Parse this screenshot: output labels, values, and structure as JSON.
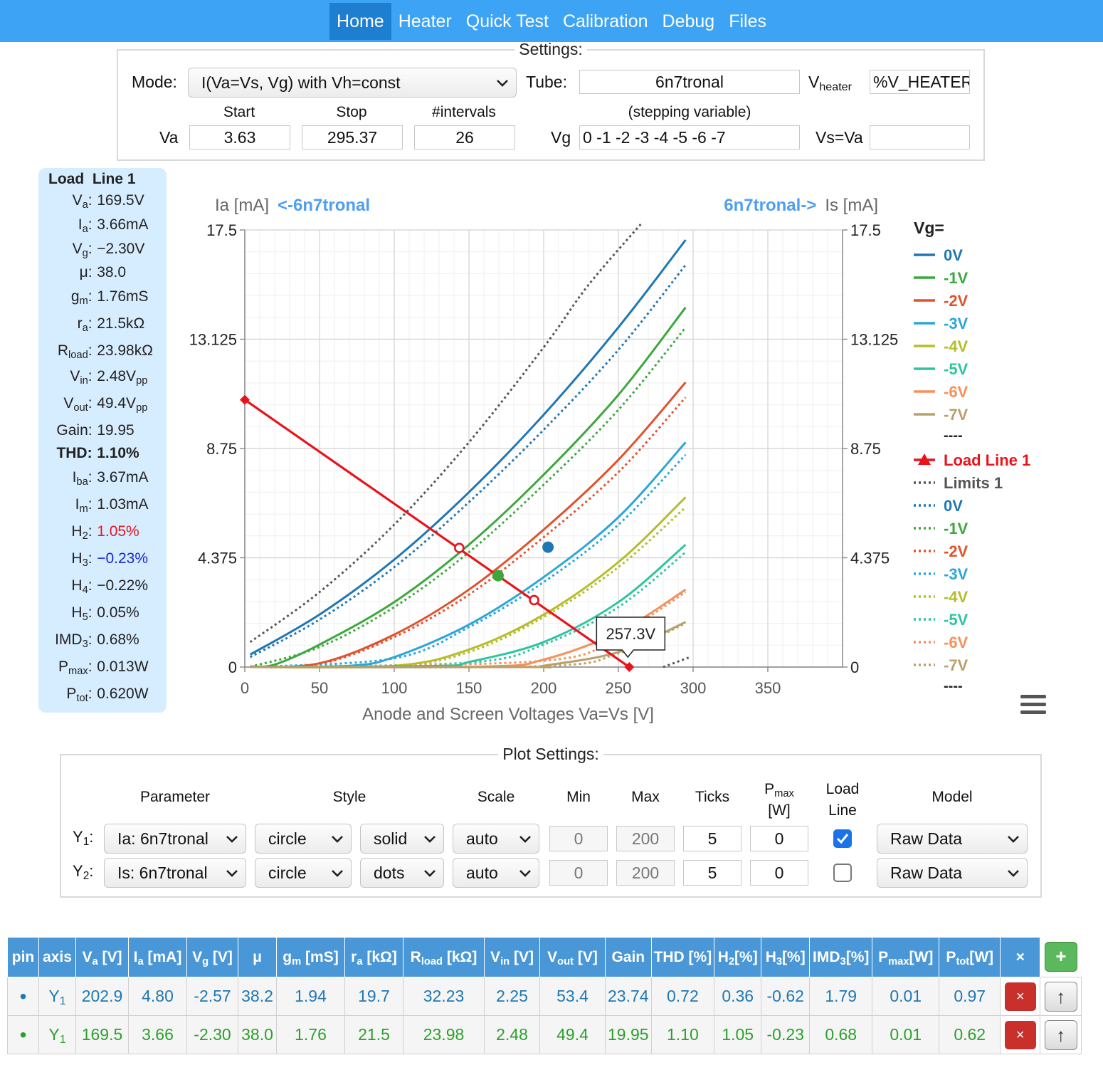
{
  "nav": {
    "tabs": [
      "Home",
      "Heater",
      "Quick Test",
      "Calibration",
      "Debug",
      "Files"
    ],
    "active": "Home"
  },
  "settings": {
    "legend": "Settings:",
    "mode_label": "Mode:",
    "mode_value": "I(Va=Vs, Vg) with Vh=const",
    "tube_label": "Tube:",
    "tube_value": "6n7tronal",
    "vheater_label_main": "V",
    "vheater_label_sub": "heater",
    "vheater_value": "%V_HEATER",
    "col_start": "Start",
    "col_stop": "Stop",
    "col_intervals": "#intervals",
    "col_stepping": "(stepping variable)",
    "va_label": "Va",
    "va_start": "3.63",
    "va_stop": "295.37",
    "va_intervals": "26",
    "vg_label": "Vg",
    "vg_value": "0 -1 -2 -3 -4 -5 -6 -7",
    "vs_label": "Vs=Va",
    "vs_value": ""
  },
  "load_line": {
    "title": "Load  Line 1",
    "rows": [
      {
        "k": "V",
        "sub": "a",
        "v": "169.5V"
      },
      {
        "k": "I",
        "sub": "a",
        "v": "3.66mA"
      },
      {
        "k": "V",
        "sub": "g",
        "v": "−2.30V"
      },
      {
        "k": "μ",
        "sub": "",
        "v": "38.0"
      },
      {
        "k": "g",
        "sub": "m",
        "v": "1.76mS"
      },
      {
        "k": "r",
        "sub": "a",
        "v": "21.5kΩ"
      },
      {
        "k": "R",
        "sub": "load",
        "v": "23.98kΩ"
      },
      {
        "k": "V",
        "sub": "in",
        "v": "2.48V",
        "vsub": "pp"
      },
      {
        "k": "V",
        "sub": "out",
        "v": "49.4V",
        "vsub": "pp"
      },
      {
        "k": "Gain",
        "sub": "",
        "v": "19.95"
      },
      {
        "k": "THD",
        "sub": "",
        "v": "1.10%",
        "bold": true
      },
      {
        "k": "I",
        "sub": "ba",
        "v": "3.67mA"
      },
      {
        "k": "I",
        "sub": "m",
        "v": "1.03mA"
      },
      {
        "k": "H",
        "sub": "2",
        "v": "1.05%",
        "color": "#e8141c"
      },
      {
        "k": "H",
        "sub": "3",
        "v": "−0.23%",
        "color": "#1426d8"
      },
      {
        "k": "H",
        "sub": "4",
        "v": "−0.22%"
      },
      {
        "k": "H",
        "sub": "5",
        "v": "0.05%"
      },
      {
        "k": "IMD",
        "sub": "3",
        "v": "0.68%"
      },
      {
        "k": "P",
        "sub": "max",
        "v": "0.013W"
      },
      {
        "k": "P",
        "sub": "tot",
        "v": "0.620W"
      }
    ]
  },
  "chart_data": {
    "type": "line",
    "title": "",
    "left_axis_title": "Ia [mA]",
    "left_axis_tube": "<-6n7tronal",
    "right_axis_tube": "6n7tronal->",
    "right_axis_title": "Is [mA]",
    "xlabel": "Anode and Screen Voltages Va=Vs [V]",
    "xlim": [
      0,
      400
    ],
    "ylim": [
      0,
      17.5
    ],
    "xticks": [
      "0",
      "50",
      "100",
      "150",
      "200",
      "250",
      "300",
      "350"
    ],
    "yticks": [
      "0",
      "4.375",
      "8.75",
      "13.125",
      "17.5"
    ],
    "grid": true,
    "legend_position": "right",
    "legend_title": "Vg=",
    "series_ia": [
      {
        "name": "0V",
        "color": "#1f77b4",
        "points": [
          [
            3.6,
            0.5
          ],
          [
            50,
            2.1
          ],
          [
            100,
            4.3
          ],
          [
            150,
            7.0
          ],
          [
            200,
            10.1
          ],
          [
            250,
            13.6
          ],
          [
            295,
            17.1
          ]
        ]
      },
      {
        "name": "-1V",
        "color": "#3ca83c",
        "points": [
          [
            3.6,
            0.02
          ],
          [
            20,
            0.1
          ],
          [
            50,
            0.9
          ],
          [
            100,
            2.6
          ],
          [
            150,
            4.9
          ],
          [
            200,
            7.7
          ],
          [
            250,
            10.9
          ],
          [
            295,
            14.4
          ]
        ]
      },
      {
        "name": "-2V",
        "color": "#e0522c",
        "points": [
          [
            3.6,
            0.0
          ],
          [
            50,
            0.15
          ],
          [
            100,
            1.3
          ],
          [
            150,
            3.1
          ],
          [
            200,
            5.5
          ],
          [
            250,
            8.3
          ],
          [
            295,
            11.4
          ]
        ]
      },
      {
        "name": "-3V",
        "color": "#2aa6d8",
        "points": [
          [
            3.6,
            0.0
          ],
          [
            70,
            0.05
          ],
          [
            100,
            0.4
          ],
          [
            150,
            1.7
          ],
          [
            200,
            3.6
          ],
          [
            250,
            6.0
          ],
          [
            295,
            9.0
          ]
        ]
      },
      {
        "name": "-4V",
        "color": "#b5bd2a",
        "points": [
          [
            3.6,
            0.0
          ],
          [
            100,
            0.05
          ],
          [
            150,
            0.7
          ],
          [
            200,
            2.1
          ],
          [
            250,
            4.2
          ],
          [
            295,
            6.8
          ]
        ]
      },
      {
        "name": "-5V",
        "color": "#2ec4a0",
        "points": [
          [
            3.6,
            0.0
          ],
          [
            130,
            0.05
          ],
          [
            150,
            0.2
          ],
          [
            200,
            1.0
          ],
          [
            250,
            2.6
          ],
          [
            295,
            4.9
          ]
        ]
      },
      {
        "name": "-6V",
        "color": "#f5915a",
        "points": [
          [
            3.6,
            0.0
          ],
          [
            160,
            0.02
          ],
          [
            200,
            0.3
          ],
          [
            250,
            1.4
          ],
          [
            295,
            3.1
          ]
        ]
      },
      {
        "name": "-7V",
        "color": "#b8a06a",
        "points": [
          [
            3.6,
            0.0
          ],
          [
            190,
            0.0
          ],
          [
            200,
            0.05
          ],
          [
            250,
            0.6
          ],
          [
            295,
            1.8
          ]
        ]
      }
    ],
    "series_is": [
      {
        "name": "0V",
        "color": "#1f77b4",
        "points": [
          [
            3.6,
            0.4
          ],
          [
            50,
            1.9
          ],
          [
            100,
            4.0
          ],
          [
            150,
            6.6
          ],
          [
            200,
            9.5
          ],
          [
            250,
            12.7
          ],
          [
            295,
            16.1
          ]
        ]
      },
      {
        "name": "-1V",
        "color": "#3ca83c",
        "points": [
          [
            3.6,
            0.01
          ],
          [
            50,
            0.8
          ],
          [
            100,
            2.4
          ],
          [
            150,
            4.6
          ],
          [
            200,
            7.3
          ],
          [
            250,
            10.3
          ],
          [
            295,
            13.6
          ]
        ]
      },
      {
        "name": "-2V",
        "color": "#e0522c",
        "points": [
          [
            3.6,
            0.0
          ],
          [
            50,
            0.12
          ],
          [
            100,
            1.2
          ],
          [
            150,
            2.9
          ],
          [
            200,
            5.2
          ],
          [
            250,
            7.8
          ],
          [
            295,
            10.8
          ]
        ]
      },
      {
        "name": "-3V",
        "color": "#2aa6d8",
        "points": [
          [
            3.6,
            0.0
          ],
          [
            100,
            0.35
          ],
          [
            150,
            1.6
          ],
          [
            200,
            3.4
          ],
          [
            250,
            5.7
          ],
          [
            295,
            8.5
          ]
        ]
      },
      {
        "name": "-4V",
        "color": "#b5bd2a",
        "points": [
          [
            3.6,
            0.0
          ],
          [
            100,
            0.04
          ],
          [
            150,
            0.6
          ],
          [
            200,
            2.0
          ],
          [
            250,
            4.0
          ],
          [
            295,
            6.4
          ]
        ]
      },
      {
        "name": "-5V",
        "color": "#2ec4a0",
        "points": [
          [
            3.6,
            0.0
          ],
          [
            150,
            0.18
          ],
          [
            200,
            0.9
          ],
          [
            250,
            2.4
          ],
          [
            295,
            4.6
          ]
        ]
      },
      {
        "name": "-6V",
        "color": "#f5915a",
        "points": [
          [
            3.6,
            0.0
          ],
          [
            200,
            0.25
          ],
          [
            250,
            1.3
          ],
          [
            295,
            3.0
          ]
        ]
      },
      {
        "name": "-7V",
        "color": "#b8a06a",
        "points": [
          [
            3.6,
            0.0
          ],
          [
            200,
            0.04
          ],
          [
            250,
            0.55
          ],
          [
            295,
            1.75
          ]
        ]
      }
    ],
    "limits": {
      "name": "Limits 1",
      "color": "#555555",
      "segments": [
        [
          [
            3.6,
            1.0
          ],
          [
            50,
            3.0
          ],
          [
            100,
            5.7
          ],
          [
            150,
            9.0
          ],
          [
            200,
            12.8
          ],
          [
            230,
            15.3
          ],
          [
            266,
            17.8
          ]
        ],
        [
          [
            280,
            0.0
          ],
          [
            298,
            0.4
          ]
        ]
      ]
    },
    "load_line": {
      "name": "Load Line 1",
      "color": "#e8141c",
      "points": [
        [
          0,
          10.7
        ],
        [
          257.3,
          0.0
        ]
      ],
      "markers_open": [
        [
          143.5,
          4.77
        ],
        [
          193.6,
          2.68
        ]
      ],
      "markers_diamond": [
        [
          0,
          10.7
        ],
        [
          257.3,
          0.0
        ]
      ]
    },
    "operating_points": [
      {
        "x": 202.9,
        "y": 4.8,
        "color": "#1f77b4"
      },
      {
        "x": 169.5,
        "y": 3.66,
        "color": "#3ca83c"
      }
    ],
    "tooltip": "257.3V",
    "legend_sep": "----"
  },
  "plot_settings": {
    "legend": "Plot Settings:",
    "headers": [
      "Parameter",
      "Style",
      "Scale",
      "Min",
      "Max",
      "Ticks"
    ],
    "pmax_header": "P",
    "pmax_sub": "max",
    "pmax_unit": "[W]",
    "load_header1": "Load",
    "load_header2": "Line",
    "model_header": "Model",
    "rows": [
      {
        "axis": "Y",
        "axis_sub": "1",
        "param": "Ia: 6n7tronal",
        "style": "circle",
        "line": "solid",
        "scale": "auto",
        "min": "0",
        "max": "200",
        "ticks": "5",
        "pmax": "0",
        "load": true,
        "model": "Raw Data"
      },
      {
        "axis": "Y",
        "axis_sub": "2",
        "param": "Is: 6n7tronal",
        "style": "circle",
        "line": "dots",
        "scale": "auto",
        "min": "0",
        "max": "200",
        "ticks": "5",
        "pmax": "0",
        "load": false,
        "model": "Raw Data"
      }
    ]
  },
  "results": {
    "headers": [
      {
        "t": "pin"
      },
      {
        "t": "axis"
      },
      {
        "t": "V",
        "s": "a",
        "u": " [V]"
      },
      {
        "t": "I",
        "s": "a",
        "u": " [mA]"
      },
      {
        "t": "V",
        "s": "g",
        "u": " [V]"
      },
      {
        "t": "μ"
      },
      {
        "t": "g",
        "s": "m",
        "u": " [mS]"
      },
      {
        "t": "r",
        "s": "a",
        "u": " [kΩ]"
      },
      {
        "t": "R",
        "s": "load",
        "u": " [kΩ]"
      },
      {
        "t": "V",
        "s": "in",
        "u": " [V]"
      },
      {
        "t": "V",
        "s": "out",
        "u": " [V]"
      },
      {
        "t": "Gain"
      },
      {
        "t": "THD [%]"
      },
      {
        "t": "H",
        "s": "2",
        "u": "[%]"
      },
      {
        "t": "H",
        "s": "3",
        "u": "[%]"
      },
      {
        "t": "IMD",
        "s": "3",
        "u": "[%]"
      },
      {
        "t": "P",
        "s": "max",
        "u": "[W]"
      },
      {
        "t": "P",
        "s": "tot",
        "u": "[W]"
      },
      {
        "t": "×"
      }
    ],
    "add_label": "+",
    "rows": [
      {
        "pin": "•",
        "axis": "Y",
        "axis_sub": "1",
        "cells": [
          "202.9",
          "4.80",
          "-2.57",
          "38.2",
          "1.94",
          "19.7",
          "32.23",
          "2.25",
          "53.4",
          "23.74",
          "0.72",
          "0.36",
          "-0.62",
          "1.79",
          "0.01",
          "0.97"
        ]
      },
      {
        "pin": "•",
        "axis": "Y",
        "axis_sub": "1",
        "cells": [
          "169.5",
          "3.66",
          "-2.30",
          "38.0",
          "1.76",
          "21.5",
          "23.98",
          "2.48",
          "49.4",
          "19.95",
          "1.10",
          "1.05",
          "-0.23",
          "0.68",
          "0.01",
          "0.62"
        ]
      }
    ],
    "del_label": "×",
    "up_label": "↑"
  }
}
